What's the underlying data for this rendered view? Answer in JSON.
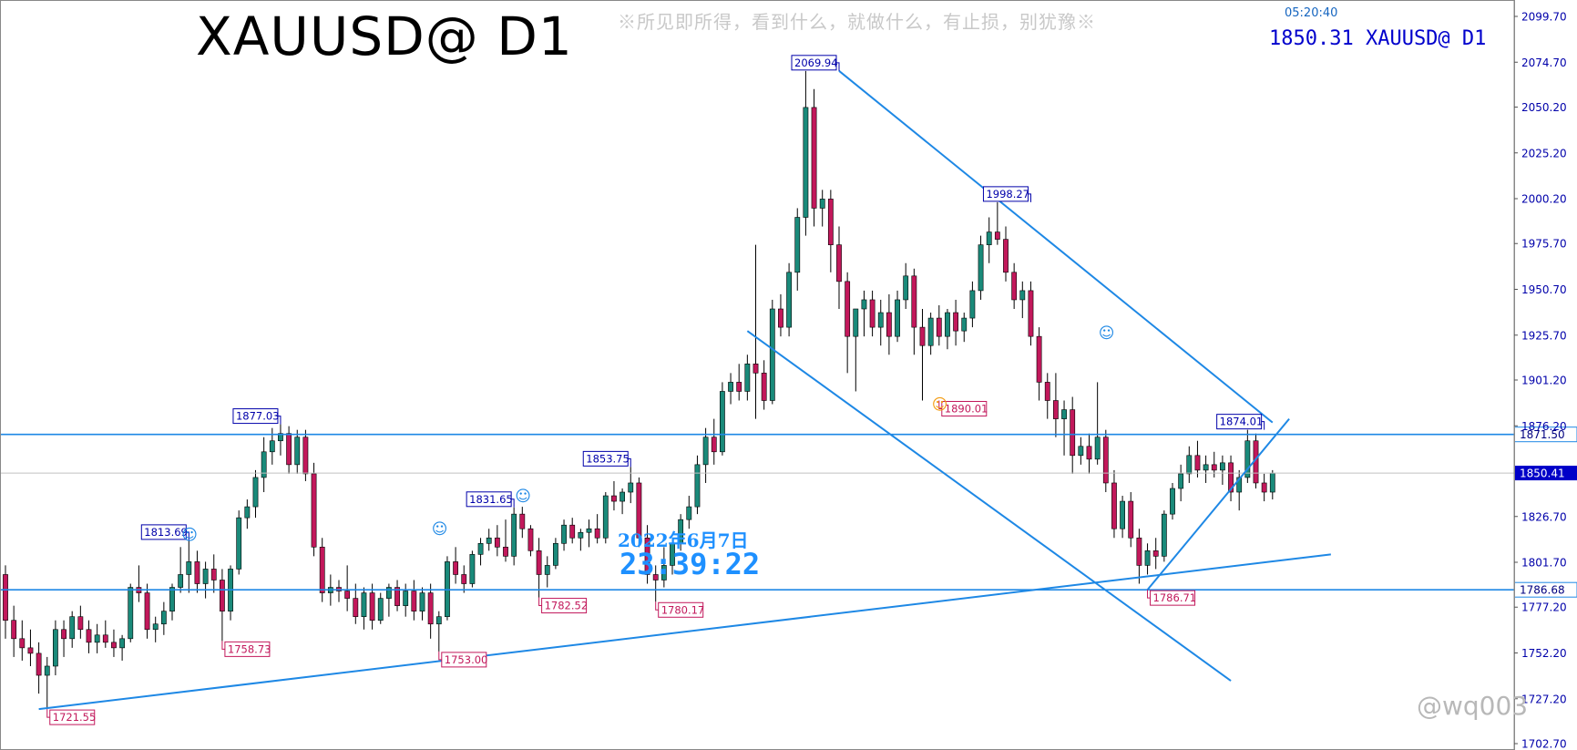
{
  "header": {
    "title": "XAUUSD@ D1",
    "slogan": "※所见即所得，看到什么，就做什么，有止损，别犹豫※",
    "clock": "05:20:40",
    "quote": "1850.31 XAUUSD@ D1"
  },
  "overlay": {
    "date": "2022年6月7日",
    "time": "23:39:22"
  },
  "watermark": "@wq003",
  "colors": {
    "bull": "#1a8a7a",
    "bear": "#c2185b",
    "trendline": "#1e88e5",
    "axis_text": "#0000aa",
    "label_high": "#0000aa",
    "label_low": "#c2185b"
  },
  "chart_data": {
    "type": "candlestick",
    "symbol": "XAUUSD",
    "timeframe": "D1",
    "ylim": [
      1702.7,
      2099.7
    ],
    "y_ticks": [
      2099.7,
      2074.7,
      2050.2,
      2025.2,
      2000.2,
      1975.7,
      1950.7,
      1925.7,
      1901.2,
      1876.2,
      1826.7,
      1801.7,
      1777.2,
      1752.2,
      1727.2,
      1702.7
    ],
    "grid": false,
    "candles": [
      [
        1795,
        1800,
        1760,
        1770
      ],
      [
        1770,
        1778,
        1750,
        1760
      ],
      [
        1760,
        1770,
        1748,
        1755
      ],
      [
        1755,
        1765,
        1745,
        1752
      ],
      [
        1752,
        1758,
        1730,
        1740
      ],
      [
        1740,
        1750,
        1721.55,
        1745
      ],
      [
        1745,
        1770,
        1740,
        1765
      ],
      [
        1765,
        1770,
        1750,
        1760
      ],
      [
        1760,
        1775,
        1755,
        1772
      ],
      [
        1772,
        1778,
        1760,
        1765
      ],
      [
        1765,
        1770,
        1752,
        1758
      ],
      [
        1758,
        1768,
        1752,
        1762
      ],
      [
        1762,
        1770,
        1755,
        1758
      ],
      [
        1758,
        1765,
        1750,
        1755
      ],
      [
        1755,
        1762,
        1748,
        1760
      ],
      [
        1760,
        1790,
        1758,
        1788
      ],
      [
        1788,
        1800,
        1780,
        1785
      ],
      [
        1785,
        1790,
        1760,
        1765
      ],
      [
        1765,
        1772,
        1758,
        1768
      ],
      [
        1768,
        1780,
        1762,
        1775
      ],
      [
        1775,
        1790,
        1770,
        1788
      ],
      [
        1788,
        1810,
        1785,
        1795
      ],
      [
        1795,
        1813.69,
        1785,
        1802
      ],
      [
        1802,
        1808,
        1785,
        1790
      ],
      [
        1790,
        1802,
        1782,
        1798
      ],
      [
        1798,
        1806,
        1785,
        1792
      ],
      [
        1792,
        1798,
        1758.73,
        1775
      ],
      [
        1775,
        1800,
        1770,
        1798
      ],
      [
        1798,
        1830,
        1795,
        1826
      ],
      [
        1826,
        1836,
        1820,
        1832
      ],
      [
        1832,
        1852,
        1826,
        1848
      ],
      [
        1848,
        1870,
        1840,
        1862
      ],
      [
        1862,
        1875,
        1855,
        1868
      ],
      [
        1868,
        1877.03,
        1860,
        1872
      ],
      [
        1872,
        1876,
        1850,
        1855
      ],
      [
        1855,
        1874,
        1850,
        1870
      ],
      [
        1870,
        1874,
        1846,
        1850
      ],
      [
        1850,
        1856,
        1805,
        1810
      ],
      [
        1810,
        1815,
        1780,
        1785
      ],
      [
        1785,
        1795,
        1778,
        1788
      ],
      [
        1788,
        1792,
        1780,
        1786
      ],
      [
        1786,
        1800,
        1775,
        1782
      ],
      [
        1782,
        1790,
        1768,
        1772
      ],
      [
        1772,
        1788,
        1765,
        1785
      ],
      [
        1785,
        1790,
        1765,
        1770
      ],
      [
        1770,
        1785,
        1768,
        1782
      ],
      [
        1782,
        1790,
        1772,
        1788
      ],
      [
        1788,
        1792,
        1775,
        1778
      ],
      [
        1778,
        1790,
        1772,
        1786
      ],
      [
        1786,
        1792,
        1770,
        1775
      ],
      [
        1775,
        1788,
        1770,
        1785
      ],
      [
        1785,
        1790,
        1760,
        1768
      ],
      [
        1768,
        1775,
        1753.0,
        1772
      ],
      [
        1772,
        1805,
        1770,
        1802
      ],
      [
        1802,
        1810,
        1790,
        1795
      ],
      [
        1795,
        1800,
        1785,
        1790
      ],
      [
        1790,
        1808,
        1788,
        1806
      ],
      [
        1806,
        1815,
        1800,
        1812
      ],
      [
        1812,
        1820,
        1808,
        1815
      ],
      [
        1815,
        1822,
        1805,
        1810
      ],
      [
        1810,
        1825,
        1802,
        1805
      ],
      [
        1805,
        1831.65,
        1800,
        1828
      ],
      [
        1828,
        1832,
        1815,
        1820
      ],
      [
        1820,
        1822,
        1805,
        1808
      ],
      [
        1808,
        1815,
        1782.52,
        1795
      ],
      [
        1795,
        1805,
        1788,
        1800
      ],
      [
        1800,
        1815,
        1798,
        1812
      ],
      [
        1812,
        1825,
        1808,
        1822
      ],
      [
        1822,
        1826,
        1812,
        1815
      ],
      [
        1815,
        1820,
        1808,
        1818
      ],
      [
        1818,
        1825,
        1810,
        1820
      ],
      [
        1820,
        1828,
        1812,
        1815
      ],
      [
        1815,
        1840,
        1812,
        1838
      ],
      [
        1838,
        1846,
        1830,
        1835
      ],
      [
        1835,
        1842,
        1828,
        1840
      ],
      [
        1840,
        1853.75,
        1834,
        1845
      ],
      [
        1845,
        1848,
        1810,
        1815
      ],
      [
        1815,
        1822,
        1790,
        1795
      ],
      [
        1795,
        1800,
        1780.17,
        1792
      ],
      [
        1792,
        1810,
        1788,
        1800
      ],
      [
        1800,
        1815,
        1795,
        1812
      ],
      [
        1812,
        1828,
        1808,
        1825
      ],
      [
        1825,
        1838,
        1820,
        1832
      ],
      [
        1832,
        1860,
        1828,
        1855
      ],
      [
        1855,
        1875,
        1845,
        1870
      ],
      [
        1870,
        1880,
        1855,
        1862
      ],
      [
        1862,
        1900,
        1860,
        1895
      ],
      [
        1895,
        1905,
        1888,
        1900
      ],
      [
        1900,
        1910,
        1890,
        1895
      ],
      [
        1895,
        1915,
        1890,
        1910
      ],
      [
        1910,
        1975,
        1880,
        1905
      ],
      [
        1905,
        1912,
        1885,
        1890
      ],
      [
        1890,
        1945,
        1888,
        1940
      ],
      [
        1940,
        1948,
        1925,
        1930
      ],
      [
        1930,
        1965,
        1925,
        1960
      ],
      [
        1960,
        1995,
        1950,
        1990
      ],
      [
        1990,
        2069.94,
        1980,
        2050
      ],
      [
        2050,
        2060,
        1985,
        1995
      ],
      [
        1995,
        2005,
        1985,
        2000
      ],
      [
        2000,
        2005,
        1960,
        1975
      ],
      [
        1975,
        1985,
        1940,
        1955
      ],
      [
        1955,
        1960,
        1905,
        1925
      ],
      [
        1925,
        1940,
        1895,
        1940
      ],
      [
        1940,
        1950,
        1925,
        1945
      ],
      [
        1945,
        1950,
        1925,
        1930
      ],
      [
        1930,
        1945,
        1920,
        1938
      ],
      [
        1938,
        1948,
        1915,
        1925
      ],
      [
        1925,
        1950,
        1922,
        1945
      ],
      [
        1945,
        1965,
        1940,
        1958
      ],
      [
        1958,
        1962,
        1915,
        1930
      ],
      [
        1930,
        1940,
        1890.01,
        1920
      ],
      [
        1920,
        1938,
        1915,
        1935
      ],
      [
        1935,
        1942,
        1920,
        1925
      ],
      [
        1925,
        1940,
        1918,
        1938
      ],
      [
        1938,
        1945,
        1920,
        1928
      ],
      [
        1928,
        1938,
        1922,
        1935
      ],
      [
        1935,
        1955,
        1930,
        1950
      ],
      [
        1950,
        1980,
        1945,
        1975
      ],
      [
        1975,
        1990,
        1965,
        1982
      ],
      [
        1982,
        1998.27,
        1975,
        1978
      ],
      [
        1978,
        1985,
        1955,
        1960
      ],
      [
        1960,
        1965,
        1940,
        1945
      ],
      [
        1945,
        1955,
        1935,
        1950
      ],
      [
        1950,
        1955,
        1920,
        1925
      ],
      [
        1925,
        1930,
        1890,
        1900
      ],
      [
        1900,
        1905,
        1880,
        1890
      ],
      [
        1890,
        1905,
        1870,
        1880
      ],
      [
        1880,
        1890,
        1860,
        1885
      ],
      [
        1885,
        1892,
        1850,
        1860
      ],
      [
        1860,
        1870,
        1855,
        1865
      ],
      [
        1865,
        1872,
        1850,
        1858
      ],
      [
        1858,
        1900,
        1855,
        1870
      ],
      [
        1870,
        1874,
        1840,
        1845
      ],
      [
        1845,
        1852,
        1815,
        1820
      ],
      [
        1820,
        1838,
        1815,
        1835
      ],
      [
        1835,
        1840,
        1810,
        1815
      ],
      [
        1815,
        1820,
        1790,
        1800
      ],
      [
        1800,
        1812,
        1795,
        1808
      ],
      [
        1808,
        1815,
        1798,
        1805
      ],
      [
        1805,
        1830,
        1802,
        1828
      ],
      [
        1828,
        1845,
        1825,
        1842
      ],
      [
        1842,
        1855,
        1835,
        1850
      ],
      [
        1850,
        1865,
        1845,
        1860
      ],
      [
        1860,
        1868,
        1848,
        1852
      ],
      [
        1852,
        1860,
        1845,
        1855
      ],
      [
        1855,
        1862,
        1848,
        1852
      ],
      [
        1852,
        1860,
        1844,
        1856
      ],
      [
        1856,
        1860,
        1835,
        1840
      ],
      [
        1840,
        1852,
        1830,
        1848
      ],
      [
        1848,
        1874.01,
        1845,
        1868
      ],
      [
        1868,
        1872,
        1842,
        1845
      ],
      [
        1845,
        1850,
        1835,
        1840
      ],
      [
        1840,
        1852,
        1836,
        1850.31
      ]
    ],
    "price_labels": [
      {
        "text": "2069.94",
        "type": "high",
        "value": 2069.94,
        "candle": 100
      },
      {
        "text": "1998.27",
        "type": "high",
        "value": 1998.27,
        "candle": 123
      },
      {
        "text": "1877.03",
        "type": "high",
        "value": 1877.03,
        "candle": 33
      },
      {
        "text": "1874.01",
        "type": "high",
        "value": 1874.01,
        "candle": 151
      },
      {
        "text": "1853.75",
        "type": "high",
        "value": 1853.75,
        "candle": 75
      },
      {
        "text": "1831.65",
        "type": "high",
        "value": 1831.65,
        "candle": 61
      },
      {
        "text": "1813.69",
        "type": "high",
        "value": 1813.69,
        "candle": 22
      },
      {
        "text": "1890.01",
        "type": "low",
        "value": 1890.01,
        "candle": 112
      },
      {
        "text": "1786.71",
        "type": "low",
        "value": 1786.71,
        "candle": 137
      },
      {
        "text": "1782.52",
        "type": "low",
        "value": 1782.52,
        "candle": 64
      },
      {
        "text": "1780.17",
        "type": "low",
        "value": 1780.17,
        "candle": 78
      },
      {
        "text": "1758.73",
        "type": "low",
        "value": 1758.73,
        "candle": 26
      },
      {
        "text": "1753.00",
        "type": "low",
        "value": 1753.0,
        "candle": 52
      },
      {
        "text": "1721.55",
        "type": "low",
        "value": 1721.55,
        "candle": 5
      }
    ],
    "horizontal_lines": [
      {
        "value": 1871.5,
        "label": "1871.50"
      },
      {
        "value": 1786.68,
        "label": "1786.68"
      }
    ],
    "current_price": {
      "value": 1850.41,
      "label": "1850.41"
    },
    "trendlines": [
      {
        "from": [
          4,
          1721.55
        ],
        "to": [
          159,
          1806
        ]
      },
      {
        "from": [
          100,
          2069.94
        ],
        "to": [
          152,
          1878
        ]
      },
      {
        "from": [
          89,
          1928
        ],
        "to": [
          147,
          1737
        ]
      },
      {
        "from": [
          137,
          1786.71
        ],
        "to": [
          154,
          1880
        ]
      }
    ],
    "smiley_markers": [
      {
        "candle": 22,
        "value": 1814,
        "color": "#1e88e5"
      },
      {
        "candle": 52,
        "value": 1817,
        "color": "#1e88e5"
      },
      {
        "candle": 62,
        "value": 1835,
        "color": "#1e88e5"
      },
      {
        "candle": 112,
        "value": 1885,
        "color": "#f39c12"
      },
      {
        "candle": 132,
        "value": 1924,
        "color": "#1e88e5"
      }
    ]
  }
}
